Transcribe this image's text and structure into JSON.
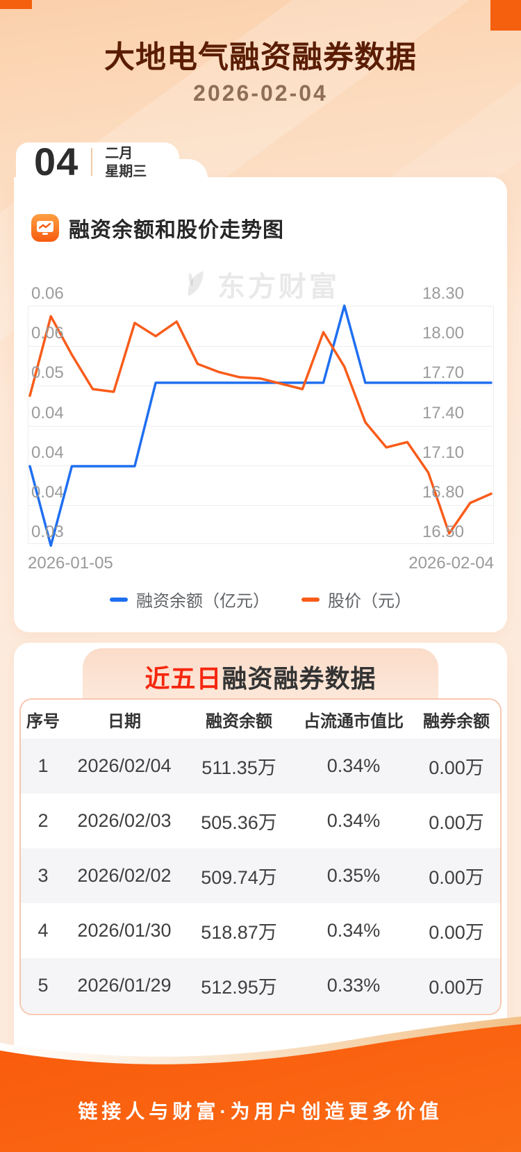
{
  "page": {
    "title": "大地电气融资融券数据",
    "date": "2026-02-04",
    "date_badge": {
      "day": "04",
      "month": "二月",
      "weekday": "星期三"
    },
    "watermark": "东方财富",
    "footer": "链接人与财富·为用户创造更多价值"
  },
  "chart_section": {
    "heading": "融资余额和股价走势图"
  },
  "chart_data": {
    "type": "line",
    "title": "融资余额和股价走势图",
    "x_labels": [
      "2026-01-05",
      "2026-02-04"
    ],
    "grid": true,
    "legend_position": "bottom",
    "left_axis": {
      "min": 0.03,
      "max": 0.06,
      "labels_top_to_bottom": [
        "0.06",
        "0.06",
        "0.05",
        "0.04",
        "0.04",
        "0.04",
        "0.03"
      ]
    },
    "right_axis": {
      "min": 16.5,
      "max": 18.3,
      "labels_top_to_bottom": [
        "18.30",
        "18.00",
        "17.70",
        "17.40",
        "17.10",
        "16.80",
        "16.50"
      ]
    },
    "series": [
      {
        "name": "融资余额（亿元）",
        "color": "#1f6ff0",
        "axis": "left",
        "values": [
          0.0398,
          0.0298,
          0.0398,
          0.0398,
          0.0398,
          0.0398,
          0.0503,
          0.0503,
          0.0503,
          0.0503,
          0.0503,
          0.0503,
          0.0503,
          0.0503,
          0.0503,
          0.06,
          0.0503,
          0.0503,
          0.0503,
          0.0503,
          0.0503,
          0.0503,
          0.0503
        ]
      },
      {
        "name": "股价（元）",
        "color": "#f85c1a",
        "axis": "right",
        "values": [
          17.62,
          18.22,
          17.93,
          17.67,
          17.65,
          18.17,
          18.07,
          18.18,
          17.86,
          17.8,
          17.76,
          17.75,
          17.71,
          17.67,
          18.1,
          17.84,
          17.42,
          17.23,
          17.27,
          17.04,
          16.58,
          16.81,
          16.88
        ]
      }
    ]
  },
  "table_section": {
    "title_highlight": "近五日",
    "title_rest": "融资融券数据",
    "columns": [
      "序号",
      "日期",
      "融资余额",
      "占流通市值比",
      "融券余额"
    ],
    "rows": [
      [
        "1",
        "2026/02/04",
        "511.35万",
        "0.34%",
        "0.00万"
      ],
      [
        "2",
        "2026/02/03",
        "505.36万",
        "0.34%",
        "0.00万"
      ],
      [
        "3",
        "2026/02/02",
        "509.74万",
        "0.35%",
        "0.00万"
      ],
      [
        "4",
        "2026/01/30",
        "518.87万",
        "0.34%",
        "0.00万"
      ],
      [
        "5",
        "2026/01/29",
        "512.95万",
        "0.33%",
        "0.00万"
      ]
    ]
  },
  "colors": {
    "accent_orange": "#f4600d",
    "title_brown": "#5a1d03",
    "line_blue": "#1f6ff0",
    "line_orange": "#f85c1a",
    "table_border": "#f8c8b0",
    "footer_orange": "#f95a0b"
  }
}
